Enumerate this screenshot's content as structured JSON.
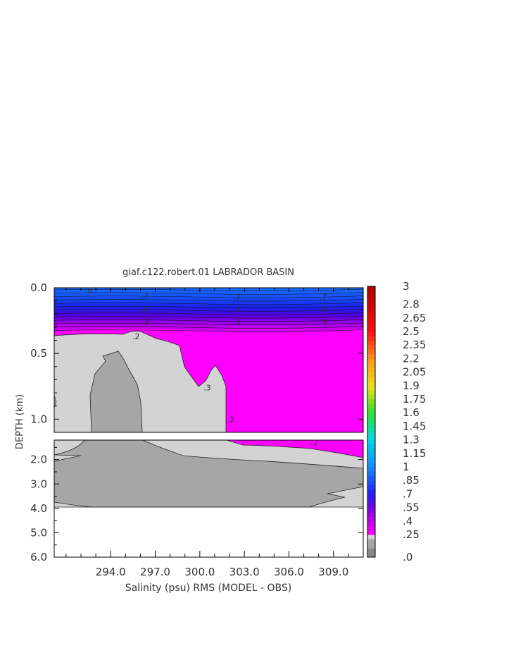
{
  "chart_data": {
    "type": "heatmap",
    "title": "giaf.c122.robert.01 LABRADOR BASIN",
    "xlabel": "Salinity (psu) RMS (MODEL - OBS)",
    "ylabel": "DEPTH (km)",
    "xlim": [
      290.2,
      311.0
    ],
    "x_ticks": [
      294.0,
      297.0,
      300.0,
      303.0,
      306.0,
      309.0
    ],
    "x_tick_labels": [
      "294.0",
      "297.0",
      "300.0",
      "303.0",
      "306.0",
      "309.0"
    ],
    "panels": [
      {
        "name": "upper",
        "ylim": [
          0.0,
          1.1
        ],
        "y_ticks": [
          0.0,
          0.5,
          1.0
        ],
        "y_tick_labels": [
          "0.0",
          "0.5",
          "1.0"
        ]
      },
      {
        "name": "lower",
        "ylim": [
          1.2,
          6.0
        ],
        "y_ticks": [
          2.0,
          3.0,
          4.0,
          5.0,
          6.0
        ],
        "y_tick_labels": [
          "2.0",
          "3.0",
          "4.0",
          "5.0",
          "6.0"
        ],
        "data_bottom_depth": 3.85
      }
    ],
    "contour_labels": [
      {
        "text": ".2",
        "x": 295.7,
        "y": 0.37
      },
      {
        "text": ".2",
        "x": 302.1,
        "y": 1.0
      },
      {
        "text": ".2",
        "x": 307.7,
        "y": 1.3
      },
      {
        "text": ".3",
        "x": 300.5,
        "y": 0.76
      },
      {
        "text": ".6",
        "x": 292.5,
        "y": 0.02
      },
      {
        "text": ".7",
        "x": 296.3,
        "y": 0.06
      },
      {
        "text": ".7",
        "x": 302.5,
        "y": 0.07
      },
      {
        "text": ".7",
        "x": 308.3,
        "y": 0.07
      },
      {
        "text": ".4",
        "x": 296.3,
        "y": 0.16
      },
      {
        "text": ".4",
        "x": 302.5,
        "y": 0.16
      },
      {
        "text": ".4",
        "x": 308.3,
        "y": 0.16
      },
      {
        "text": ".3",
        "x": 296.3,
        "y": 0.26
      },
      {
        "text": ".3",
        "x": 302.5,
        "y": 0.26
      },
      {
        "text": ".3",
        "x": 308.3,
        "y": 0.26
      }
    ],
    "colorbar": {
      "min": 0.0,
      "max": 3.0,
      "step": 0.05,
      "tick_labels": [
        "3",
        "2.8",
        "2.65",
        "2.5",
        "2.35",
        "2.2",
        "2.05",
        "1.9",
        "1.75",
        "1.6",
        "1.45",
        "1.3",
        "1.15",
        "1",
        ".85",
        ".7",
        ".55",
        ".4",
        ".25",
        ".0"
      ],
      "tick_values": [
        3.0,
        2.8,
        2.65,
        2.5,
        2.35,
        2.2,
        2.05,
        1.9,
        1.75,
        1.6,
        1.45,
        1.3,
        1.15,
        1.0,
        0.85,
        0.7,
        0.55,
        0.4,
        0.25,
        0.0
      ],
      "colors": {
        "below_01": "#888888",
        "below_02": "#a6a6a6",
        "below_025": "#d3d3d3",
        "band_025_03": "#ff00ff",
        "magenta_violet": "#c000e8",
        "purple": "#7a00e0",
        "blue": "#2020ff",
        "mid_blue": "#1a8cff",
        "cyan": "#00d8e8",
        "green": "#30e030",
        "yellow": "#f0e020",
        "orange": "#ff9020",
        "red": "#ff1010",
        "dark_red": "#b00000"
      }
    }
  }
}
